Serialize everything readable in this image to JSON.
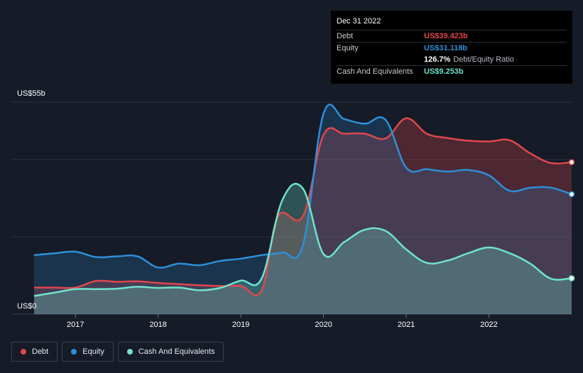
{
  "tooltip": {
    "date": "Dec 31 2022",
    "debt_label": "Debt",
    "debt_value": "US$39.423b",
    "equity_label": "Equity",
    "equity_value": "US$31.118b",
    "ratio_value": "126.7%",
    "ratio_label": "Debt/Equity Ratio",
    "cash_label": "Cash And Equivalents",
    "cash_value": "US$9.253b"
  },
  "legend": [
    {
      "label": "Debt",
      "color": "#e0474c"
    },
    {
      "label": "Equity",
      "color": "#2d8fd8"
    },
    {
      "label": "Cash And Equivalents",
      "color": "#6ee3cc"
    }
  ],
  "colors": {
    "debt": "#e0474c",
    "equity": "#2d8fd8",
    "cash": "#6ee3cc",
    "background": "#151b27",
    "tooltip_bg": "#000000"
  },
  "chart_data": {
    "type": "area",
    "ylabel_top": "US$55b",
    "ylabel_bottom": "US$0",
    "ylim": [
      0,
      55
    ],
    "xlim": [
      2016.5,
      2023.0
    ],
    "x_ticks": [
      2017,
      2018,
      2019,
      2020,
      2021,
      2022
    ],
    "x_tick_labels": [
      "2017",
      "2018",
      "2019",
      "2020",
      "2021",
      "2022"
    ],
    "grid": true,
    "series": [
      {
        "name": "Debt",
        "key": "debt",
        "x": [
          2016.5,
          2016.75,
          2017.0,
          2017.25,
          2017.5,
          2017.75,
          2018.0,
          2018.25,
          2018.5,
          2018.75,
          2019.0,
          2019.25,
          2019.45,
          2019.75,
          2020.0,
          2020.25,
          2020.5,
          2020.75,
          2021.0,
          2021.25,
          2021.5,
          2021.75,
          2022.0,
          2022.25,
          2022.5,
          2022.75,
          2023.0
        ],
        "y": [
          6.9,
          6.9,
          6.9,
          8.6,
          8.4,
          8.5,
          8.1,
          7.8,
          7.5,
          7.3,
          7.3,
          6.1,
          25.4,
          25.4,
          46.5,
          46.8,
          46.8,
          45.6,
          50.8,
          46.8,
          45.7,
          45.0,
          44.8,
          45.1,
          41.7,
          39.2,
          39.4
        ]
      },
      {
        "name": "Equity",
        "key": "equity",
        "x": [
          2016.5,
          2016.75,
          2017.0,
          2017.25,
          2017.5,
          2017.75,
          2018.0,
          2018.25,
          2018.5,
          2018.75,
          2019.0,
          2019.25,
          2019.5,
          2019.75,
          2020.0,
          2020.25,
          2020.5,
          2020.75,
          2021.0,
          2021.25,
          2021.5,
          2021.75,
          2022.0,
          2022.25,
          2022.5,
          2022.75,
          2023.0
        ],
        "y": [
          15.3,
          15.8,
          16.2,
          14.8,
          15.0,
          15.0,
          12.1,
          13.1,
          12.7,
          13.8,
          14.4,
          15.3,
          16.0,
          17.9,
          52.0,
          50.6,
          49.4,
          50.4,
          38.0,
          37.6,
          37.0,
          37.4,
          36.0,
          32.0,
          32.8,
          32.8,
          31.1
        ]
      },
      {
        "name": "Cash And Equivalents",
        "key": "cash",
        "x": [
          2016.5,
          2016.75,
          2017.0,
          2017.25,
          2017.5,
          2017.75,
          2018.0,
          2018.25,
          2018.5,
          2018.75,
          2019.0,
          2019.25,
          2019.5,
          2019.75,
          2020.0,
          2020.25,
          2020.5,
          2020.75,
          2021.0,
          2021.25,
          2021.5,
          2021.75,
          2022.0,
          2022.25,
          2022.5,
          2022.75,
          2023.0
        ],
        "y": [
          4.7,
          5.6,
          6.5,
          6.5,
          6.6,
          7.1,
          6.8,
          6.9,
          6.2,
          6.8,
          8.7,
          9.2,
          29.5,
          32.6,
          15.6,
          18.7,
          21.9,
          21.6,
          16.8,
          13.3,
          13.9,
          15.8,
          17.3,
          15.8,
          13.1,
          9.2,
          9.3
        ]
      }
    ]
  }
}
